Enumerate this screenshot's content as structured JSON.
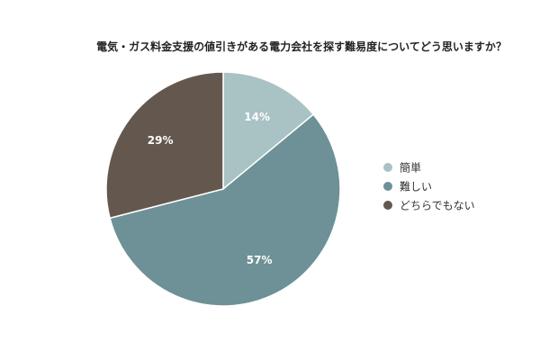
{
  "chart_data": {
    "type": "pie",
    "title": "電気・ガス料金支援の値引きがある電力会社を探す難易度についてどう思いますか？",
    "slices": [
      {
        "label": "簡単",
        "value": 14,
        "display": "14%",
        "color": "#a9c2c4"
      },
      {
        "label": "難しい",
        "value": 57,
        "display": "57%",
        "color": "#6d9196"
      },
      {
        "label": "どちらでもない",
        "value": 29,
        "display": "29%",
        "color": "#64574e"
      }
    ],
    "legend_position": "right",
    "start_angle": "12 o'clock",
    "direction": "clockwise"
  }
}
